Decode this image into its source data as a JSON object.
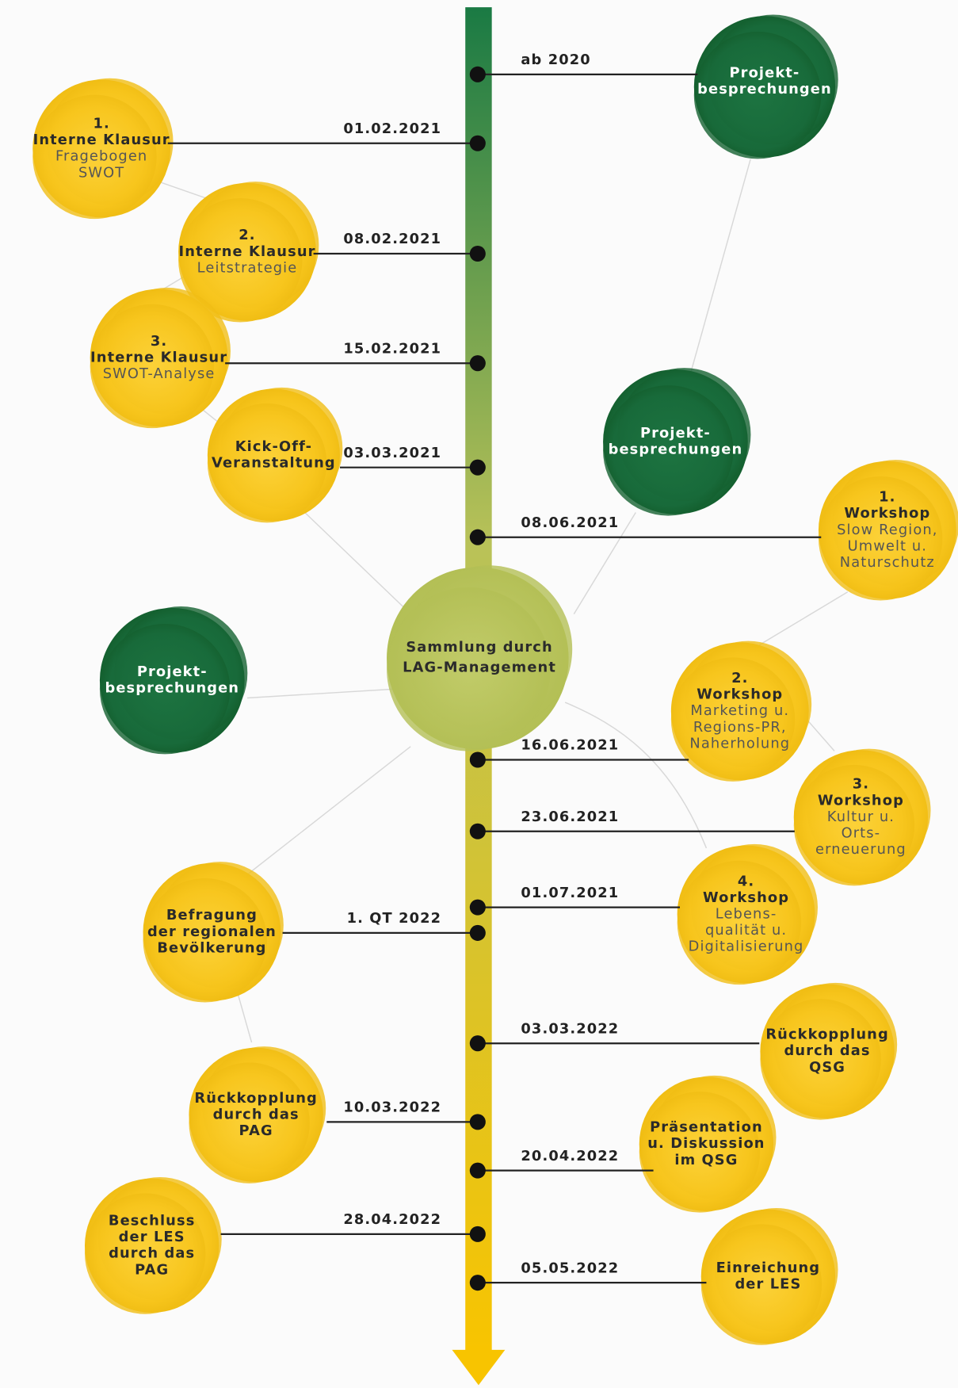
{
  "center": {
    "lines": [
      "Sammlung durch",
      "LAG-Management"
    ]
  },
  "events": [
    {
      "date": "ab 2020",
      "title": [
        "Projekt-",
        "besprechungen"
      ],
      "detail": []
    },
    {
      "date": "01.02.2021",
      "title": [
        "1.",
        "Interne Klausur"
      ],
      "detail": [
        "Fragebogen",
        "SWOT"
      ]
    },
    {
      "date": "08.02.2021",
      "title": [
        "2.",
        "Interne Klausur"
      ],
      "detail": [
        "Leitstrategie"
      ]
    },
    {
      "date": "15.02.2021",
      "title": [
        "3.",
        "Interne Klausur"
      ],
      "detail": [
        "SWOT-Analyse"
      ]
    },
    {
      "date": "03.03.2021",
      "title": [
        "Kick-Off-",
        "Veranstaltung"
      ],
      "detail": []
    },
    {
      "date": "08.06.2021",
      "title": [
        "1.",
        "Workshop"
      ],
      "detail": [
        "Slow Region,",
        "Umwelt u.",
        "Naturschutz"
      ]
    },
    {
      "date": "16.06.2021",
      "title": [
        "2.",
        "Workshop"
      ],
      "detail": [
        "Marketing u.",
        "Regions-PR,",
        "Naherholung"
      ]
    },
    {
      "date": "23.06.2021",
      "title": [
        "3.",
        "Workshop"
      ],
      "detail": [
        "Kultur u.",
        "Orts-",
        "erneuerung"
      ]
    },
    {
      "date": "01.07.2021",
      "title": [
        "4.",
        "Workshop"
      ],
      "detail": [
        "Lebens-",
        "qualität u.",
        "Digitalisierung"
      ]
    },
    {
      "date": "1. QT 2022",
      "title": [
        "Befragung",
        "der regionalen",
        "Bevölkerung"
      ],
      "detail": []
    },
    {
      "date": "03.03.2022",
      "title": [
        "Rückkopplung",
        "durch das",
        "QSG"
      ],
      "detail": []
    },
    {
      "date": "10.03.2022",
      "title": [
        "Rückkopplung",
        "durch das",
        "PAG"
      ],
      "detail": []
    },
    {
      "date": "20.04.2022",
      "title": [
        "Präsentation",
        "u. Diskussion",
        "im QSG"
      ],
      "detail": []
    },
    {
      "date": "28.04.2022",
      "title": [
        "Beschluss",
        "der LES",
        "durch das",
        "PAG"
      ],
      "detail": []
    },
    {
      "date": "05.05.2022",
      "title": [
        "Einreichung",
        "der LES"
      ],
      "detail": []
    }
  ],
  "nodes": [
    {
      "title": [
        "Projekt-",
        "besprechungen"
      ]
    },
    {
      "title": [
        "Projekt-",
        "besprechungen"
      ]
    }
  ]
}
